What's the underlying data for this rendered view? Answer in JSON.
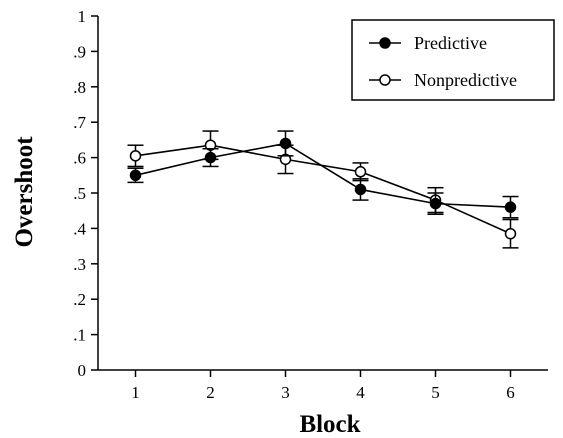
{
  "chart_data": {
    "type": "line",
    "xlabel": "Block",
    "ylabel": "Overshoot",
    "x": [
      1,
      2,
      3,
      4,
      5,
      6
    ],
    "xlim": [
      0.5,
      6.5
    ],
    "ylim": [
      0,
      1
    ],
    "x_ticks": [
      "1",
      "2",
      "3",
      "4",
      "5",
      "6"
    ],
    "y_ticks": [
      "0",
      ".1",
      ".2",
      ".3",
      ".4",
      ".5",
      ".6",
      ".7",
      ".8",
      ".9",
      "1"
    ],
    "grid": false,
    "legend_position": "top-right",
    "series": [
      {
        "name": "Predictive",
        "marker": "filled-circle",
        "color": "#000000",
        "values": [
          0.55,
          0.6,
          0.64,
          0.51,
          0.47,
          0.46
        ],
        "error": [
          0.02,
          0.025,
          0.035,
          0.03,
          0.03,
          0.03
        ]
      },
      {
        "name": "Nonpredictive",
        "marker": "open-circle",
        "color": "#000000",
        "values": [
          0.605,
          0.635,
          0.595,
          0.56,
          0.48,
          0.385
        ],
        "error": [
          0.03,
          0.04,
          0.04,
          0.025,
          0.035,
          0.04
        ]
      }
    ]
  }
}
